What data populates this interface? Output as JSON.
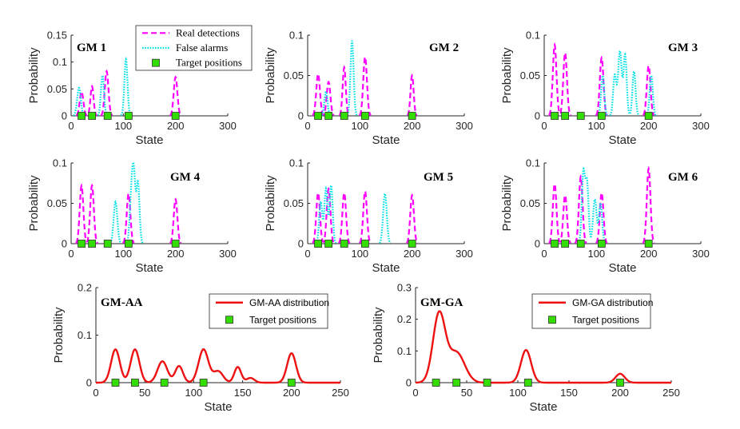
{
  "colors": {
    "real": "#ff00ff",
    "false": "#00e0e8",
    "combined": "#ee1111",
    "marker_fill": "#33dd00",
    "marker_edge": "#333333",
    "axis": "#262626"
  },
  "chart_data": [
    {
      "id": "gm1",
      "type": "line",
      "title": "GM 1",
      "xlabel": "State",
      "ylabel": "Probability",
      "xlim": [
        0,
        300
      ],
      "ylim": [
        0,
        0.15
      ],
      "xticks": [
        "0",
        "100",
        "200",
        "300"
      ],
      "yticks": [
        "0",
        "0.05",
        "0.1",
        "0.15"
      ],
      "series": [
        {
          "name": "Real detections",
          "style": "dashed",
          "peaks": [
            [
              20,
              0.045,
              3.5
            ],
            [
              40,
              0.055,
              3
            ],
            [
              68,
              0.083,
              3.5
            ],
            [
              200,
              0.072,
              3.5
            ]
          ]
        },
        {
          "name": "False alarms",
          "style": "dotted",
          "peaks": [
            [
              15,
              0.052,
              3.5
            ],
            [
              60,
              0.075,
              3
            ],
            [
              105,
              0.105,
              3
            ]
          ]
        }
      ],
      "targets": [
        20,
        40,
        70,
        110,
        200
      ],
      "legend": {
        "entries": [
          "Real detections",
          "False alarms",
          "Target positions"
        ]
      }
    },
    {
      "id": "gm2",
      "type": "line",
      "title": "GM 2",
      "xlabel": "State",
      "ylabel": "Probability",
      "xlim": [
        0,
        300
      ],
      "ylim": [
        0,
        0.1
      ],
      "xticks": [
        "0",
        "100",
        "200",
        "300"
      ],
      "yticks": [
        "0",
        "0.05",
        "0.1"
      ],
      "series": [
        {
          "name": "Real detections",
          "style": "dashed",
          "peaks": [
            [
              20,
              0.052,
              3.5
            ],
            [
              40,
              0.042,
              3.5
            ],
            [
              70,
              0.06,
              3
            ],
            [
              110,
              0.073,
              3.5
            ],
            [
              200,
              0.05,
              3
            ]
          ]
        },
        {
          "name": "False alarms",
          "style": "dotted",
          "peaks": [
            [
              35,
              0.03,
              3
            ],
            [
              85,
              0.093,
              3
            ]
          ]
        }
      ],
      "targets": [
        20,
        40,
        70,
        110,
        200
      ]
    },
    {
      "id": "gm3",
      "type": "line",
      "title": "GM 3",
      "xlabel": "State",
      "ylabel": "Probability",
      "xlim": [
        0,
        300
      ],
      "ylim": [
        0,
        0.1
      ],
      "xticks": [
        "0",
        "100",
        "200",
        "300"
      ],
      "yticks": [
        "0",
        "0.05",
        "0.1"
      ],
      "series": [
        {
          "name": "Real detections",
          "style": "dashed",
          "peaks": [
            [
              20,
              0.088,
              3.5
            ],
            [
              40,
              0.078,
              3.5
            ],
            [
              110,
              0.072,
              3.5
            ],
            [
              200,
              0.062,
              3.5
            ]
          ]
        },
        {
          "name": "False alarms",
          "style": "dotted",
          "peaks": [
            [
              112,
              0.05,
              3
            ],
            [
              135,
              0.05,
              3
            ],
            [
              145,
              0.08,
              3.5
            ],
            [
              155,
              0.075,
              3
            ],
            [
              172,
              0.055,
              3
            ],
            [
              205,
              0.05,
              3
            ]
          ]
        }
      ],
      "targets": [
        20,
        40,
        70,
        110,
        200
      ]
    },
    {
      "id": "gm4",
      "type": "line",
      "title": "GM 4",
      "xlabel": "State",
      "ylabel": "Probability",
      "xlim": [
        0,
        300
      ],
      "ylim": [
        0,
        0.1
      ],
      "xticks": [
        "0",
        "100",
        "200",
        "300"
      ],
      "yticks": [
        "0",
        "0.05",
        "0.1"
      ],
      "series": [
        {
          "name": "Real detections",
          "style": "dashed",
          "peaks": [
            [
              20,
              0.072,
              3.5
            ],
            [
              40,
              0.072,
              3.5
            ],
            [
              110,
              0.062,
              3.5
            ],
            [
              200,
              0.055,
              3.5
            ]
          ]
        },
        {
          "name": "False alarms",
          "style": "dotted",
          "peaks": [
            [
              85,
              0.052,
              3.5
            ],
            [
              115,
              0.052,
              3
            ],
            [
              120,
              0.083,
              3
            ],
            [
              128,
              0.075,
              3
            ]
          ]
        }
      ],
      "targets": [
        20,
        40,
        70,
        110,
        200
      ]
    },
    {
      "id": "gm5",
      "type": "line",
      "title": "GM 5",
      "xlabel": "State",
      "ylabel": "Probability",
      "xlim": [
        0,
        300
      ],
      "ylim": [
        0,
        0.1
      ],
      "xticks": [
        "0",
        "100",
        "200",
        "300"
      ],
      "yticks": [
        "0",
        "0.05",
        "0.1"
      ],
      "series": [
        {
          "name": "Real detections",
          "style": "dashed",
          "peaks": [
            [
              20,
              0.063,
              3.5
            ],
            [
              40,
              0.068,
              3.5
            ],
            [
              70,
              0.063,
              3.5
            ],
            [
              110,
              0.065,
              3.5
            ],
            [
              200,
              0.06,
              3.5
            ]
          ]
        },
        {
          "name": "False alarms",
          "style": "dotted",
          "peaks": [
            [
              25,
              0.052,
              3
            ],
            [
              35,
              0.068,
              3
            ],
            [
              45,
              0.072,
              3
            ],
            [
              148,
              0.062,
              3.5
            ]
          ]
        }
      ],
      "targets": [
        20,
        40,
        70,
        110,
        200
      ]
    },
    {
      "id": "gm6",
      "type": "line",
      "title": "GM 6",
      "xlabel": "State",
      "ylabel": "Probability",
      "xlim": [
        0,
        300
      ],
      "ylim": [
        0,
        0.1
      ],
      "xticks": [
        "0",
        "100",
        "200",
        "300"
      ],
      "yticks": [
        "0",
        "0.05",
        "0.1"
      ],
      "series": [
        {
          "name": "Real detections",
          "style": "dashed",
          "peaks": [
            [
              20,
              0.074,
              3.5
            ],
            [
              40,
              0.06,
              3.5
            ],
            [
              70,
              0.083,
              3.5
            ],
            [
              110,
              0.063,
              3.5
            ],
            [
              200,
              0.093,
              3.5
            ]
          ]
        },
        {
          "name": "False alarms",
          "style": "dotted",
          "peaks": [
            [
              75,
              0.087,
              3
            ],
            [
              82,
              0.075,
              3
            ],
            [
              97,
              0.055,
              3.5
            ],
            [
              108,
              0.05,
              3
            ]
          ]
        }
      ],
      "targets": [
        20,
        40,
        70,
        110,
        200
      ]
    },
    {
      "id": "gmaa",
      "type": "line",
      "title": "GM-AA",
      "xlabel": "State",
      "ylabel": "Probability",
      "xlim": [
        0,
        250
      ],
      "ylim": [
        0,
        0.2
      ],
      "xticks": [
        "0",
        "50",
        "100",
        "150",
        "200",
        "250"
      ],
      "yticks": [
        "0",
        "0.1",
        "0.2"
      ],
      "series": [
        {
          "name": "GM-AA distribution",
          "style": "solid",
          "peaks": [
            [
              20,
              0.07,
              4.5
            ],
            [
              40,
              0.07,
              4.5
            ],
            [
              68,
              0.045,
              5
            ],
            [
              85,
              0.035,
              4
            ],
            [
              110,
              0.07,
              5
            ],
            [
              125,
              0.024,
              5
            ],
            [
              145,
              0.033,
              3.5
            ],
            [
              158,
              0.01,
              4
            ],
            [
              200,
              0.062,
              4.5
            ]
          ]
        }
      ],
      "targets": [
        20,
        40,
        70,
        110,
        200
      ],
      "legend": {
        "entries": [
          "GM-AA distribution",
          "Target positions"
        ]
      }
    },
    {
      "id": "gmga",
      "type": "line",
      "title": "GM-GA",
      "xlabel": "State",
      "ylabel": "Probability",
      "xlim": [
        0,
        250
      ],
      "ylim": [
        0,
        0.3
      ],
      "xticks": [
        "0",
        "50",
        "100",
        "150",
        "200",
        "250"
      ],
      "yticks": [
        "0",
        "0.1",
        "0.2",
        "0.3"
      ],
      "series": [
        {
          "name": "GM-GA distribution",
          "style": "solid",
          "peaks": [
            [
              23,
              0.215,
              6
            ],
            [
              40,
              0.095,
              8
            ],
            [
              108,
              0.103,
              5
            ],
            [
              200,
              0.028,
              4.5
            ]
          ]
        }
      ],
      "targets": [
        20,
        40,
        70,
        110,
        200
      ],
      "legend": {
        "entries": [
          "GM-GA distribution",
          "Target positions"
        ]
      }
    }
  ]
}
